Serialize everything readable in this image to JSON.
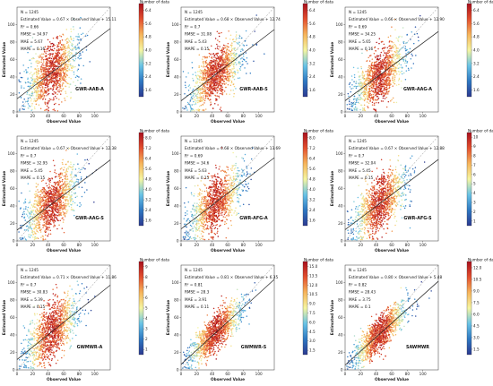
{
  "chart_data": [
    {
      "type": "scatter",
      "panel_label": "GWR-AAB-A",
      "n_text": "N = 1245",
      "eq_text": "Estimated Value = 0.67 × Observed Value + 15.11",
      "r2_text": "R² = 0.66",
      "rmse_text": "RMSE = 34.97",
      "mae_text": "MAE = 5.67",
      "mape_text": "MAPE = 0.16",
      "slope": 0.67,
      "intercept": 15.11,
      "xlabel": "Observed Value",
      "ylabel": "Estimated Value",
      "xlim": [
        0,
        120
      ],
      "ylim": [
        0,
        120
      ],
      "xticks": [
        0,
        20,
        40,
        60,
        80,
        100
      ],
      "yticks": [
        0,
        20,
        40,
        60,
        80,
        100
      ],
      "colorbar_title": "Number of data",
      "colorbar_ticks": [
        "1.6",
        "2.4",
        "3.2",
        "4.0",
        "4.8",
        "5.6",
        "6.4"
      ],
      "colorbar_range": [
        1.2,
        6.8
      ],
      "colorbar_colors": [
        "#2b3990",
        "#2e78c2",
        "#69c3e6",
        "#f5f5a0",
        "#f6b55c",
        "#e3502f",
        "#a80f1c"
      ]
    },
    {
      "type": "scatter",
      "panel_label": "GWR-AAB-S",
      "n_text": "N = 1245",
      "eq_text": "Estimated Value = 0.68 × Observed Value + 12.74",
      "r2_text": "R² = 0.7",
      "rmse_text": "RMSE = 31.08",
      "mae_text": "MAE = 5.43",
      "mape_text": "MAPE = 0.15",
      "slope": 0.68,
      "intercept": 12.74,
      "xlabel": "Observed Value",
      "ylabel": "Estimated Value",
      "xlim": [
        0,
        120
      ],
      "ylim": [
        0,
        120
      ],
      "xticks": [
        0,
        20,
        40,
        60,
        80,
        100
      ],
      "yticks": [
        0,
        20,
        40,
        60,
        80,
        100
      ],
      "colorbar_title": "Number of data",
      "colorbar_ticks": [
        "1.6",
        "2.4",
        "3.2",
        "4.0",
        "4.8",
        "5.6",
        "6.4"
      ],
      "colorbar_range": [
        1.2,
        6.8
      ],
      "colorbar_colors": [
        "#2b3990",
        "#2e78c2",
        "#69c3e6",
        "#f5f5a0",
        "#f6b55c",
        "#e3502f",
        "#a80f1c"
      ]
    },
    {
      "type": "scatter",
      "panel_label": "GWR-AAG-A",
      "n_text": "N = 1245",
      "eq_text": "Estimated Value = 0.66 × Observed Value + 12.90",
      "r2_text": "R² = 0.69",
      "rmse_text": "RMSE = 34.25",
      "mae_text": "MAE = 5.65",
      "mape_text": "MAPE = 0.16",
      "slope": 0.66,
      "intercept": 12.9,
      "xlabel": "Observed Value",
      "ylabel": "Estimated Value",
      "xlim": [
        0,
        120
      ],
      "ylim": [
        0,
        120
      ],
      "xticks": [
        0,
        20,
        40,
        60,
        80,
        100
      ],
      "yticks": [
        0,
        20,
        40,
        60,
        80,
        100
      ],
      "colorbar_title": "Number of data",
      "colorbar_ticks": [
        "1.6",
        "2.4",
        "3.2",
        "4.0",
        "4.8",
        "5.6",
        "6.4"
      ],
      "colorbar_range": [
        1.2,
        6.8
      ],
      "colorbar_colors": [
        "#2b3990",
        "#2e78c2",
        "#69c3e6",
        "#f5f5a0",
        "#f6b55c",
        "#e3502f",
        "#a80f1c"
      ]
    },
    {
      "type": "scatter",
      "panel_label": "GWR-AAG-S",
      "n_text": "N = 1245",
      "eq_text": "Estimated Value = 0.67 × Observed Value + 12.38",
      "r2_text": "R² = 0.7",
      "rmse_text": "RMSE = 32.95",
      "mae_text": "MAE = 5.45",
      "mape_text": "MAPE = 0.15",
      "slope": 0.67,
      "intercept": 12.38,
      "xlabel": "Observed Value",
      "ylabel": "Estimated Value",
      "xlim": [
        0,
        120
      ],
      "ylim": [
        0,
        120
      ],
      "xticks": [
        0,
        20,
        40,
        60,
        80,
        100
      ],
      "yticks": [
        0,
        20,
        40,
        60,
        80,
        100
      ],
      "colorbar_title": "Number of data",
      "colorbar_ticks": [
        "1.6",
        "2.4",
        "3.2",
        "4.0",
        "4.8",
        "5.6",
        "6.4",
        "7.2",
        "8.0"
      ],
      "colorbar_range": [
        1.2,
        8.4
      ],
      "colorbar_colors": [
        "#2b3990",
        "#2e78c2",
        "#69c3e6",
        "#f5f5a0",
        "#f6b55c",
        "#e3502f",
        "#a80f1c"
      ]
    },
    {
      "type": "scatter",
      "panel_label": "GWR-AFG-A",
      "n_text": "N = 1245",
      "eq_text": "Estimated Value = 0.68 × Observed Value + 13.69",
      "r2_text": "R² = 0.69",
      "rmse_text": "RMSE = 34.6",
      "mae_text": "MAE = 5.63",
      "mape_text": "MAPE = 0.15",
      "slope": 0.68,
      "intercept": 13.69,
      "xlabel": "Observed Value",
      "ylabel": "Estimated Value",
      "xlim": [
        0,
        120
      ],
      "ylim": [
        0,
        120
      ],
      "xticks": [
        0,
        20,
        40,
        60,
        80,
        100
      ],
      "yticks": [
        0,
        20,
        40,
        60,
        80,
        100
      ],
      "colorbar_title": "Number of data",
      "colorbar_ticks": [
        "1.6",
        "2.4",
        "3.2",
        "4.0",
        "4.8",
        "5.6",
        "6.4",
        "7.2",
        "8.0"
      ],
      "colorbar_range": [
        1.2,
        8.4
      ],
      "colorbar_colors": [
        "#2b3990",
        "#2e78c2",
        "#69c3e6",
        "#f5f5a0",
        "#f6b55c",
        "#e3502f",
        "#a80f1c"
      ]
    },
    {
      "type": "scatter",
      "panel_label": "GWR-AFG-S",
      "n_text": "N = 1245",
      "eq_text": "Estimated Value = 0.67 × Observed Value + 12.88",
      "r2_text": "R² = 0.7",
      "rmse_text": "RMSE = 32.04",
      "mae_text": "MAE = 5.45",
      "mape_text": "MAPE = 0.15",
      "slope": 0.67,
      "intercept": 12.88,
      "xlabel": "Observed Value",
      "ylabel": "Estimated Value",
      "xlim": [
        0,
        120
      ],
      "ylim": [
        0,
        120
      ],
      "xticks": [
        0,
        20,
        40,
        60,
        80,
        100
      ],
      "yticks": [
        0,
        20,
        40,
        60,
        80,
        100
      ],
      "colorbar_title": "Number of data",
      "colorbar_ticks": [
        "1",
        "2",
        "3",
        "4",
        "5",
        "6",
        "7",
        "8",
        "9",
        "10"
      ],
      "colorbar_range": [
        0.5,
        10.5
      ],
      "colorbar_colors": [
        "#2b3990",
        "#2e78c2",
        "#69c3e6",
        "#f5f5a0",
        "#f6b55c",
        "#e3502f",
        "#a80f1c"
      ]
    },
    {
      "type": "scatter",
      "panel_label": "GWMWR-A",
      "n_text": "N = 1245",
      "eq_text": "Estimated Value = 0.71 × Observed Value + 11.86",
      "r2_text": "R² = 0.7",
      "rmse_text": "RMSE = 30.83",
      "mae_text": "MAE = 5.39",
      "mape_text": "MAPE = 0.15",
      "slope": 0.71,
      "intercept": 11.86,
      "xlabel": "Observed Value",
      "ylabel": "Estimated Value",
      "xlim": [
        0,
        120
      ],
      "ylim": [
        0,
        120
      ],
      "xticks": [
        0,
        20,
        40,
        60,
        80,
        100
      ],
      "yticks": [
        0,
        20,
        40,
        60,
        80,
        100
      ],
      "colorbar_title": "Number of data",
      "colorbar_ticks": [
        "1",
        "2",
        "3",
        "4",
        "5",
        "6",
        "7",
        "8",
        "9"
      ],
      "colorbar_range": [
        0.5,
        9.5
      ],
      "colorbar_colors": [
        "#2b3990",
        "#2e78c2",
        "#69c3e6",
        "#f5f5a0",
        "#f6b55c",
        "#e3502f",
        "#a80f1c"
      ]
    },
    {
      "type": "scatter",
      "panel_label": "GWMWR-S",
      "n_text": "N = 1245",
      "eq_text": "Estimated Value = 0.81 × Observed Value + 6.35",
      "r2_text": "R² = 0.81",
      "rmse_text": "RMSE = 28.3",
      "mae_text": "MAE = 3.91",
      "mape_text": "MAPE = 0.11",
      "slope": 0.81,
      "intercept": 6.35,
      "xlabel": "Observed Value",
      "ylabel": "Estimated Value",
      "xlim": [
        0,
        120
      ],
      "ylim": [
        0,
        120
      ],
      "xticks": [
        0,
        20,
        40,
        60,
        80,
        100
      ],
      "yticks": [
        0,
        20,
        40,
        60,
        80,
        100
      ],
      "colorbar_title": "Number of data",
      "colorbar_ticks": [
        "1.5",
        "3.0",
        "4.5",
        "6.0",
        "7.5",
        "9.0",
        "10.5",
        "12.0",
        "13.5",
        "15.0"
      ],
      "colorbar_range": [
        0.8,
        15.8
      ],
      "colorbar_colors": [
        "#2b3990",
        "#2e78c2",
        "#69c3e6",
        "#f5f5a0",
        "#f6b55c",
        "#e3502f",
        "#a80f1c"
      ]
    },
    {
      "type": "scatter",
      "panel_label": "SAWMWR",
      "n_text": "N = 1245",
      "eq_text": "Estimated Value = 0.80 × Observed Value + 5.48",
      "r2_text": "R² = 0.82",
      "rmse_text": "RMSE = 28.43",
      "mae_text": "MAE = 3.75",
      "mape_text": "MAPE = 0.1",
      "slope": 0.8,
      "intercept": 5.48,
      "xlabel": "Observed Value",
      "ylabel": "Estimated Value",
      "xlim": [
        0,
        120
      ],
      "ylim": [
        0,
        120
      ],
      "xticks": [
        0,
        20,
        40,
        60,
        80,
        100
      ],
      "yticks": [
        0,
        20,
        40,
        60,
        80,
        100
      ],
      "colorbar_title": "Number of data",
      "colorbar_ticks": [
        "1.5",
        "3.0",
        "4.5",
        "6.0",
        "7.5",
        "9.0",
        "10.5",
        "12.0"
      ],
      "colorbar_range": [
        0.8,
        12.8
      ],
      "colorbar_colors": [
        "#2b3990",
        "#2e78c2",
        "#69c3e6",
        "#f5f5a0",
        "#f6b55c",
        "#e3502f",
        "#a80f1c"
      ]
    }
  ]
}
